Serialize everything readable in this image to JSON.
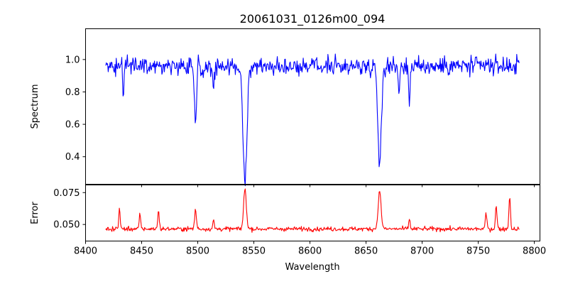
{
  "title": "20061031_0126m00_094",
  "chart_data": [
    {
      "type": "line",
      "panel": "top",
      "ylabel": "Spectrum",
      "xlabel": "",
      "xlim": [
        8400,
        8805
      ],
      "ylim": [
        0.23,
        1.19
      ],
      "x_ticks": [
        8400,
        8450,
        8500,
        8550,
        8600,
        8650,
        8700,
        8750,
        8800
      ],
      "y_ticks": [
        0.4,
        0.6,
        0.8,
        1.0
      ],
      "y_tick_labels": [
        "0.4",
        "0.6",
        "0.8",
        "1.0"
      ],
      "series": [
        {
          "color": "#0000ff",
          "x_range": [
            8418,
            8787
          ],
          "continuum": 0.96,
          "noise": 0.07,
          "absorption_lines": [
            {
              "center": 8498.0,
              "depth": 0.39,
              "width": 0.9
            },
            {
              "center": 8542.1,
              "depth": 0.69,
              "width": 1.8
            },
            {
              "center": 8662.1,
              "depth": 0.61,
              "width": 1.5
            },
            {
              "center": 8688.6,
              "depth": 0.24,
              "width": 0.6
            },
            {
              "center": 8433.6,
              "depth": 0.18,
              "width": 0.6
            },
            {
              "center": 8514.1,
              "depth": 0.12,
              "width": 0.7
            },
            {
              "center": 8679.4,
              "depth": 0.14,
              "width": 0.7
            }
          ]
        }
      ]
    },
    {
      "type": "line",
      "panel": "bottom",
      "ylabel": "Error",
      "xlabel": "Wavelength",
      "xlim": [
        8400,
        8805
      ],
      "ylim": [
        0.037,
        0.081
      ],
      "x_ticks": [
        8400,
        8450,
        8500,
        8550,
        8600,
        8650,
        8700,
        8750,
        8800
      ],
      "x_tick_labels": [
        "8400",
        "8450",
        "8500",
        "8550",
        "8600",
        "8650",
        "8700",
        "8750",
        "8800"
      ],
      "y_ticks": [
        0.05,
        0.075
      ],
      "y_tick_labels": [
        "0.050",
        "0.075"
      ],
      "series": [
        {
          "color": "#ff0000",
          "x_range": [
            8418,
            8787
          ],
          "baseline": 0.0465,
          "noise": 0.002,
          "peaks": [
            {
              "center": 8542.1,
              "height": 0.0315,
              "width": 1.2
            },
            {
              "center": 8662.1,
              "height": 0.0295,
              "width": 1.3
            },
            {
              "center": 8498.0,
              "height": 0.015,
              "width": 0.8
            },
            {
              "center": 8430.2,
              "height": 0.017,
              "width": 0.6
            },
            {
              "center": 8465.0,
              "height": 0.014,
              "width": 0.7
            },
            {
              "center": 8448.5,
              "height": 0.012,
              "width": 0.6
            },
            {
              "center": 8778.0,
              "height": 0.025,
              "width": 0.7
            },
            {
              "center": 8766.0,
              "height": 0.018,
              "width": 0.7
            },
            {
              "center": 8757.0,
              "height": 0.012,
              "width": 0.7
            },
            {
              "center": 8688.6,
              "height": 0.008,
              "width": 0.6
            },
            {
              "center": 8514.1,
              "height": 0.007,
              "width": 0.6
            }
          ]
        }
      ]
    }
  ]
}
